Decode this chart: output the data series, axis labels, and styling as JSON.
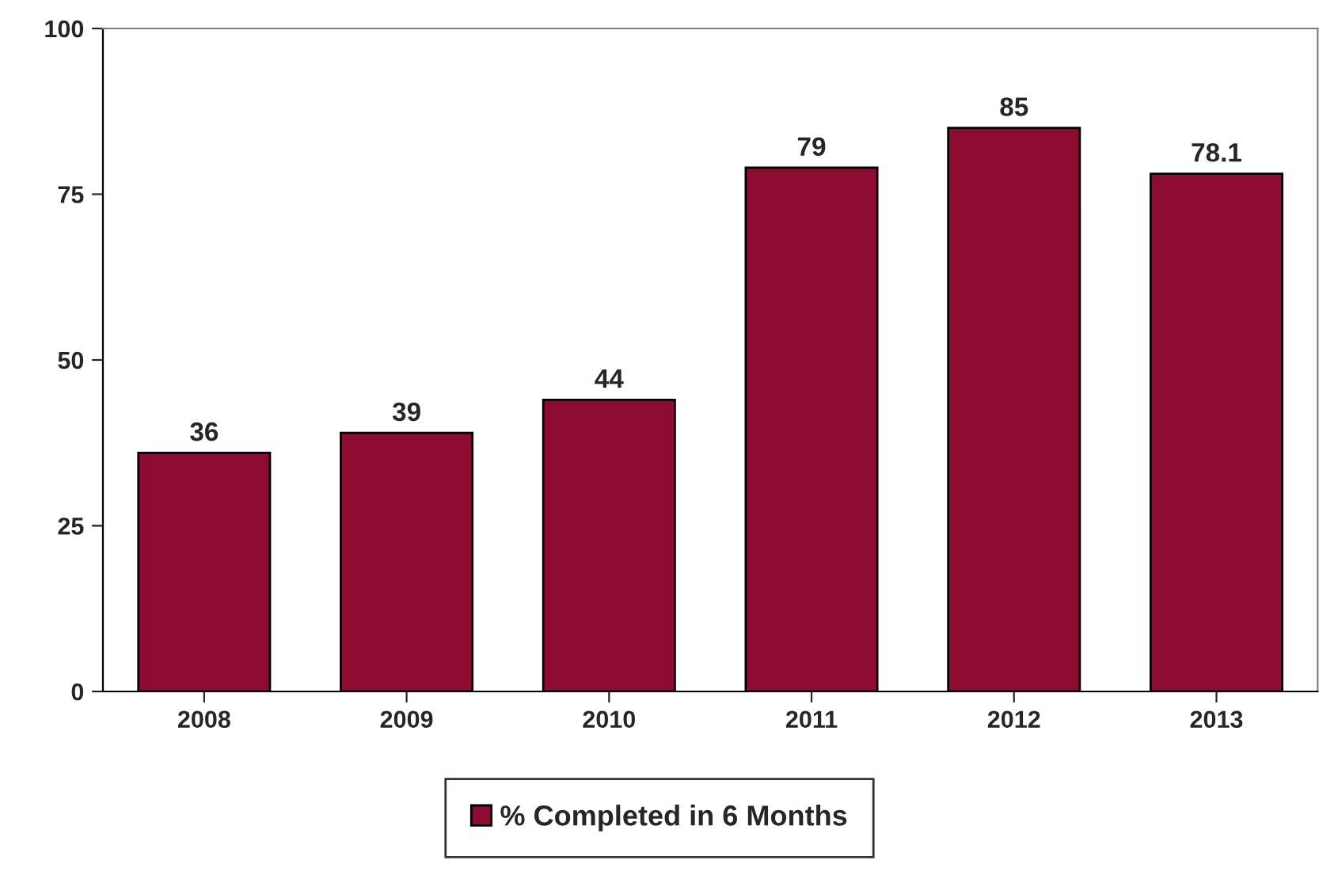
{
  "chart_data": {
    "type": "bar",
    "categories": [
      "2008",
      "2009",
      "2010",
      "2011",
      "2012",
      "2013"
    ],
    "series": [
      {
        "name": "% Completed in 6 Months",
        "color": "#8b0c30",
        "values": [
          36,
          39,
          44,
          79,
          85,
          78.1
        ]
      }
    ],
    "ylim": [
      0,
      100
    ],
    "yticks": [
      0,
      25,
      50,
      75,
      100
    ],
    "data_labels": true,
    "grid": false,
    "legend": "bottom"
  }
}
